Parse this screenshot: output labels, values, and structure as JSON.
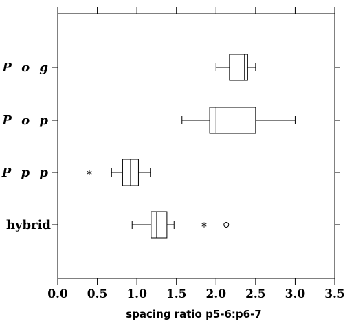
{
  "chart_data": {
    "type": "boxplot",
    "title": "",
    "xlabel": "spacing ratio p5-6:p6-7",
    "ylabel": "",
    "xlim": [
      0.0,
      3.5
    ],
    "x_ticks": [
      0.0,
      0.5,
      1.0,
      1.5,
      2.0,
      2.5,
      3.0,
      3.5
    ],
    "x_tick_labels": [
      "0.0",
      "0.5",
      "1.0",
      "1.5",
      "2.0",
      "2.5",
      "3.0",
      "3.5"
    ],
    "grid": false,
    "categories": [
      {
        "label": "P o g",
        "italic": true,
        "whisker_low": 2.0,
        "q1": 2.17,
        "median": 2.36,
        "q3": 2.4,
        "whisker_high": 2.5,
        "outliers": []
      },
      {
        "label": "P o p",
        "italic": true,
        "whisker_low": 1.57,
        "q1": 1.92,
        "median": 2.0,
        "q3": 2.5,
        "whisker_high": 3.0,
        "outliers": []
      },
      {
        "label": "P p p",
        "italic": true,
        "whisker_low": 0.68,
        "q1": 0.82,
        "median": 0.92,
        "q3": 1.02,
        "whisker_high": 1.17,
        "outliers": [
          {
            "value": 0.4,
            "kind": "far",
            "symbol": "*"
          }
        ]
      },
      {
        "label": "hybrid",
        "italic": false,
        "whisker_low": 0.94,
        "q1": 1.18,
        "median": 1.25,
        "q3": 1.38,
        "whisker_high": 1.47,
        "outliers": [
          {
            "value": 1.85,
            "kind": "far",
            "symbol": "*"
          },
          {
            "value": 2.13,
            "kind": "near",
            "symbol": "o"
          }
        ]
      }
    ]
  }
}
